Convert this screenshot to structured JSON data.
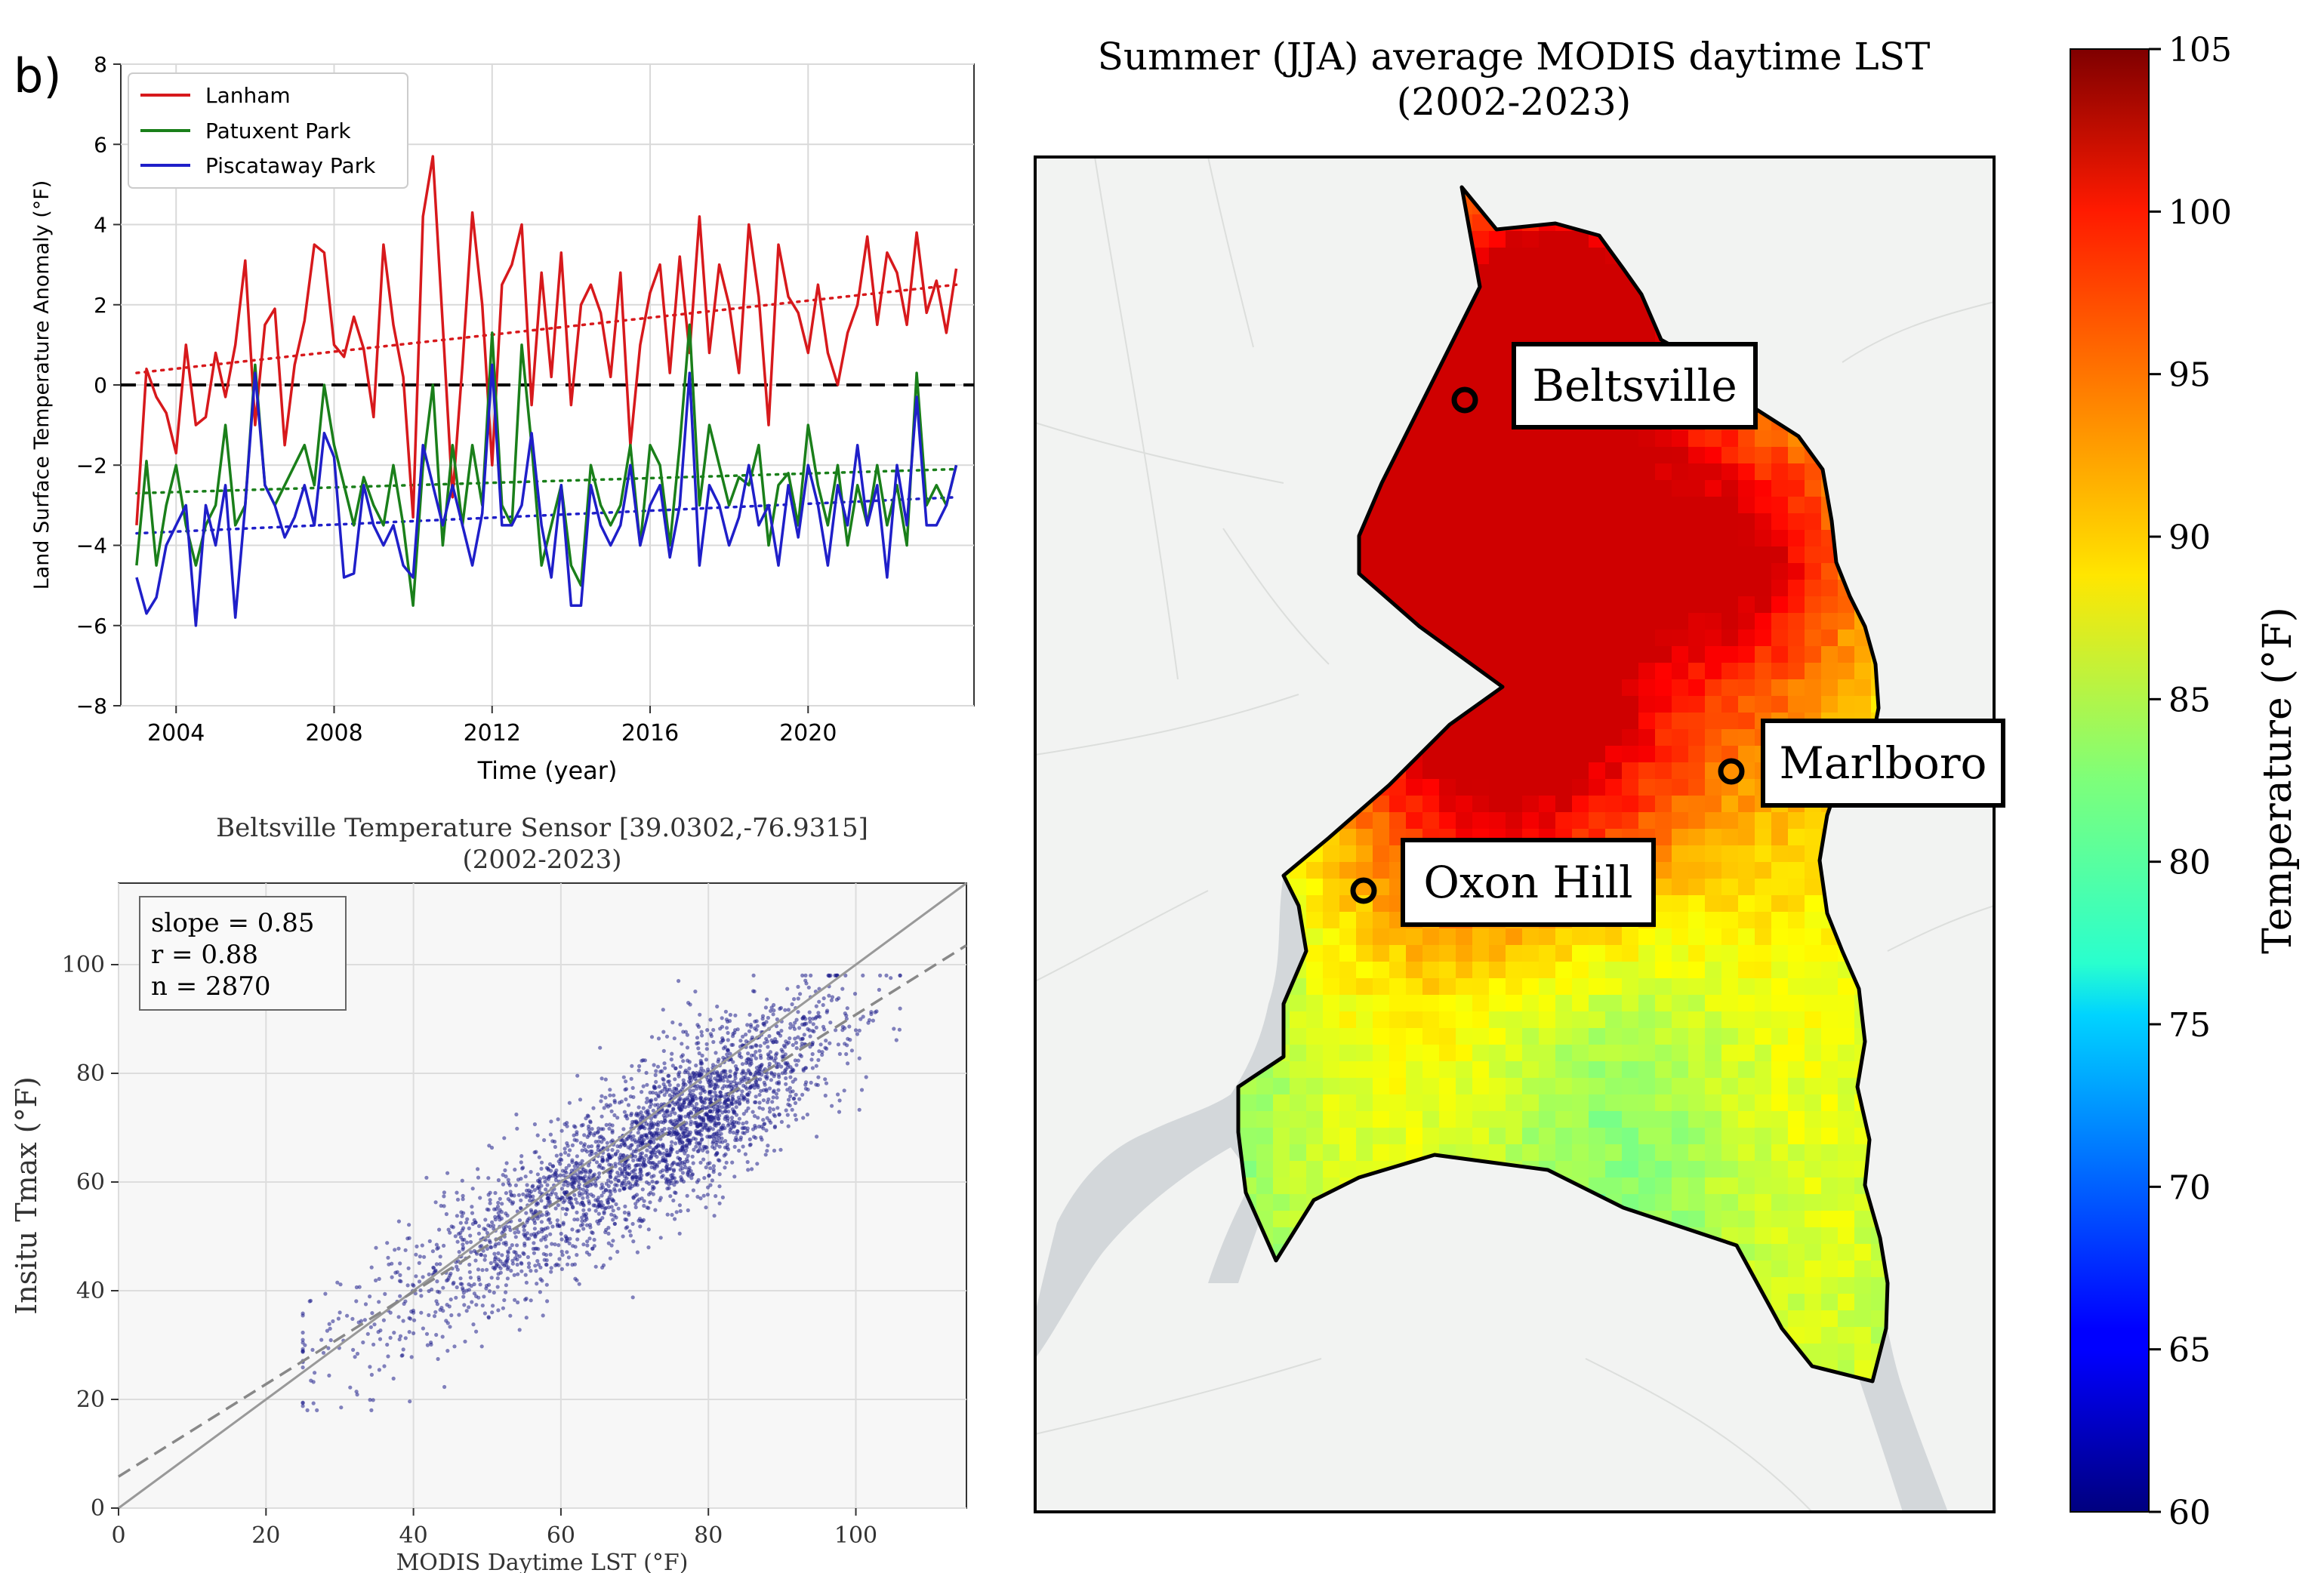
{
  "panel_label": "b)",
  "colors": {
    "lanham": "#d7191c",
    "patuxent": "#1a7f1a",
    "piscataway": "#1f1fc9",
    "scatter": "#1f1f8c",
    "map_bg": "#f2f3f2",
    "water": "#d3d7da"
  },
  "chart_data": [
    {
      "type": "line",
      "title": "",
      "xlabel": "Time (year)",
      "ylabel": "Land Surface Temperature Anomaly (°F)",
      "xlim": [
        2002.6,
        2024.2
      ],
      "ylim": [
        -8,
        8
      ],
      "xticks": [
        "2004",
        "2008",
        "2012",
        "2016",
        "2020"
      ],
      "yticks": [
        "−8",
        "−6",
        "−4",
        "−2",
        "0",
        "2",
        "4",
        "6",
        "8"
      ],
      "grid": true,
      "legend_position": "upper-left",
      "reference_line": 0,
      "x": [
        2003.0,
        2003.25,
        2003.5,
        2003.75,
        2004.0,
        2004.25,
        2004.5,
        2004.75,
        2005.0,
        2005.25,
        2005.5,
        2005.75,
        2006.0,
        2006.25,
        2006.5,
        2006.75,
        2007.0,
        2007.25,
        2007.5,
        2007.75,
        2008.0,
        2008.25,
        2008.5,
        2008.75,
        2009.0,
        2009.25,
        2009.5,
        2009.75,
        2010.0,
        2010.25,
        2010.5,
        2010.75,
        2011.0,
        2011.25,
        2011.5,
        2011.75,
        2012.0,
        2012.25,
        2012.5,
        2012.75,
        2013.0,
        2013.25,
        2013.5,
        2013.75,
        2014.0,
        2014.25,
        2014.5,
        2014.75,
        2015.0,
        2015.25,
        2015.5,
        2015.75,
        2016.0,
        2016.25,
        2016.5,
        2016.75,
        2017.0,
        2017.25,
        2017.5,
        2017.75,
        2018.0,
        2018.25,
        2018.5,
        2018.75,
        2019.0,
        2019.25,
        2019.5,
        2019.75,
        2020.0,
        2020.25,
        2020.5,
        2020.75,
        2021.0,
        2021.25,
        2021.5,
        2021.75,
        2022.0,
        2022.25,
        2022.5,
        2022.75,
        2023.0,
        2023.25,
        2023.5,
        2023.75
      ],
      "series": [
        {
          "name": "Lanham",
          "color": "#d7191c",
          "trend": [
            0.3,
            2.5
          ],
          "values": [
            -3.5,
            0.4,
            -0.3,
            -0.7,
            -1.7,
            1.0,
            -1.0,
            -0.8,
            0.8,
            -0.3,
            1.0,
            3.1,
            -1.0,
            1.5,
            1.9,
            -1.5,
            0.5,
            1.6,
            3.5,
            3.3,
            1.0,
            0.7,
            1.7,
            0.9,
            -0.8,
            3.5,
            1.5,
            0.2,
            -3.3,
            4.2,
            5.7,
            1.5,
            -2.8,
            0.5,
            4.3,
            2.0,
            -2.0,
            2.5,
            3.0,
            4.0,
            -0.5,
            2.8,
            0.2,
            3.3,
            -0.5,
            2.0,
            2.5,
            1.8,
            0.2,
            2.8,
            -1.5,
            1.0,
            2.3,
            3.0,
            0.3,
            3.2,
            0.8,
            4.2,
            0.8,
            3.0,
            2.0,
            0.3,
            4.0,
            2.2,
            -1.0,
            3.5,
            2.2,
            1.8,
            0.8,
            2.5,
            0.8,
            0.0,
            1.3,
            2.0,
            3.7,
            1.5,
            3.3,
            2.8,
            1.5,
            3.8,
            1.8,
            2.6,
            1.3,
            2.9
          ]
        },
        {
          "name": "Patuxent Park",
          "color": "#1a7f1a",
          "trend": [
            -2.7,
            -2.1
          ],
          "values": [
            -4.5,
            -1.9,
            -4.5,
            -3.0,
            -2.0,
            -3.5,
            -4.5,
            -3.5,
            -3.0,
            -1.0,
            -3.5,
            -3.0,
            0.5,
            -2.5,
            -3.0,
            -2.5,
            -2.0,
            -1.5,
            -2.5,
            0.0,
            -1.5,
            -2.5,
            -3.5,
            -2.3,
            -3.0,
            -3.5,
            -2.0,
            -3.5,
            -5.5,
            -2.0,
            0.0,
            -4.0,
            -1.5,
            -3.5,
            -1.5,
            -3.0,
            1.3,
            -3.0,
            -3.5,
            1.0,
            -1.5,
            -4.5,
            -3.5,
            -2.5,
            -4.5,
            -5.0,
            -2.0,
            -3.0,
            -3.5,
            -3.0,
            -1.5,
            -4.0,
            -1.5,
            -2.0,
            -4.0,
            -1.5,
            1.5,
            -3.0,
            -1.0,
            -2.0,
            -3.0,
            -2.3,
            -2.5,
            -1.5,
            -4.0,
            -2.5,
            -2.2,
            -3.5,
            -1.0,
            -2.5,
            -3.5,
            -2.0,
            -4.0,
            -2.5,
            -3.5,
            -2.0,
            -3.5,
            -2.5,
            -4.0,
            0.3,
            -3.0,
            -2.5,
            -3.0,
            -2.0
          ]
        },
        {
          "name": "Piscataway Park",
          "color": "#1f1fc9",
          "trend": [
            -3.7,
            -2.8
          ],
          "values": [
            -4.8,
            -5.7,
            -5.3,
            -4.0,
            -3.5,
            -3.0,
            -6.0,
            -3.0,
            -4.0,
            -2.5,
            -5.8,
            -3.0,
            0.3,
            -2.5,
            -3.0,
            -3.8,
            -3.3,
            -2.5,
            -3.5,
            -1.2,
            -1.8,
            -4.8,
            -4.7,
            -2.5,
            -3.5,
            -4.0,
            -3.5,
            -4.5,
            -4.8,
            -1.5,
            -2.5,
            -3.5,
            -2.5,
            -3.5,
            -4.5,
            -3.2,
            0.5,
            -3.5,
            -3.5,
            -3.0,
            -1.2,
            -3.5,
            -4.8,
            -2.5,
            -5.5,
            -5.5,
            -2.5,
            -3.5,
            -4.0,
            -3.5,
            -2.0,
            -4.0,
            -3.0,
            -2.5,
            -4.3,
            -3.0,
            0.3,
            -4.5,
            -2.5,
            -3.0,
            -4.0,
            -3.3,
            -2.0,
            -3.5,
            -3.0,
            -4.5,
            -2.5,
            -3.8,
            -2.0,
            -3.0,
            -4.5,
            -2.5,
            -3.5,
            -1.5,
            -3.5,
            -2.5,
            -4.8,
            -2.0,
            -3.5,
            -0.3,
            -3.5,
            -3.5,
            -3.0,
            -2.0
          ]
        }
      ]
    },
    {
      "type": "scatter",
      "title": "Beltsville Temperature Sensor [39.0302,-76.9315]",
      "subtitle": "(2002-2023)",
      "xlabel": "MODIS Daytime LST (°F)",
      "ylabel": "Insitu Tmax (°F)",
      "xlim": [
        0,
        115
      ],
      "ylim": [
        0,
        115
      ],
      "xticks": [
        "0",
        "20",
        "40",
        "60",
        "80",
        "100"
      ],
      "yticks": [
        "0",
        "20",
        "40",
        "60",
        "80",
        "100"
      ],
      "grid": true,
      "stats": [
        "slope = 0.85",
        "r = 0.88",
        "n = 2870"
      ],
      "fit_line": {
        "slope": 0.85,
        "intercept": 5.8
      },
      "identity_line": true,
      "point_summary": {
        "n": 2870,
        "x_range": [
          25,
          106
        ],
        "y_range": [
          18,
          98
        ]
      }
    },
    {
      "type": "heatmap",
      "title": "Summer (JJA) average MODIS daytime LST",
      "subtitle": "(2002-2023)",
      "colorbar_label": "Temperature (°F)",
      "colorbar_range": [
        60,
        105
      ],
      "colorbar_ticks": [
        "60",
        "65",
        "70",
        "75",
        "80",
        "85",
        "90",
        "95",
        "100",
        "105"
      ],
      "colormap": "jet",
      "locations": [
        {
          "name": "Beltsville"
        },
        {
          "name": "Marlboro"
        },
        {
          "name": "Oxon Hill"
        }
      ]
    }
  ]
}
